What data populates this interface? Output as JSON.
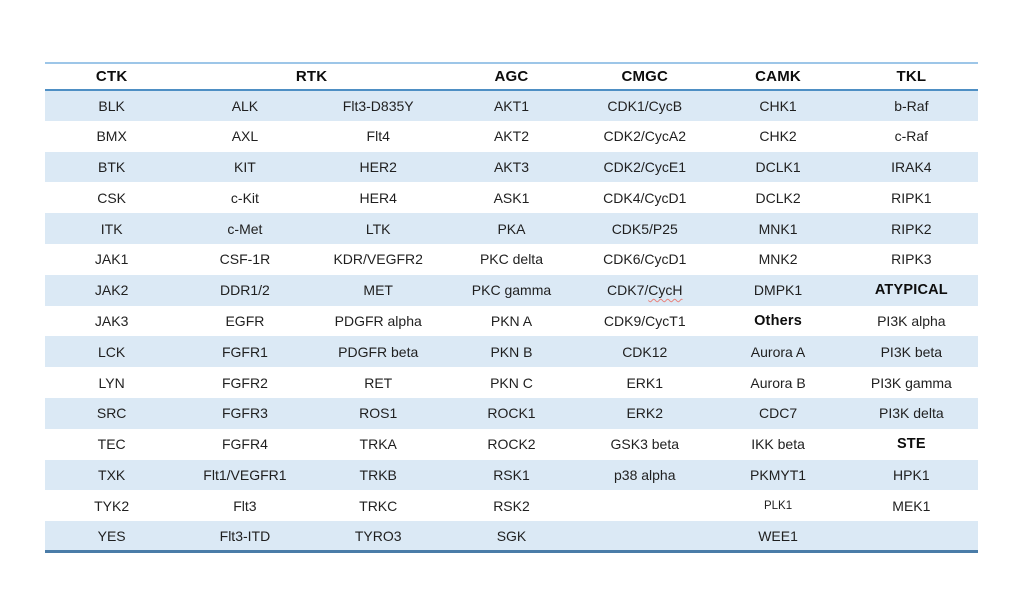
{
  "page": {
    "background": "#ffffff"
  },
  "table": {
    "colors": {
      "stripe": "#dbe9f5",
      "top_rule": "#9dc6e8",
      "header_rule": "#4e8fc4",
      "bottom_rule": "#4a7ca8",
      "text": "#1f1f1f",
      "spellcheck": "#e8827c"
    },
    "header": [
      {
        "label": "CTK",
        "span": 1
      },
      {
        "label": "RTK",
        "span": 2
      },
      {
        "label": "AGC",
        "span": 1
      },
      {
        "label": "CMGC",
        "span": 1
      },
      {
        "label": "CAMK",
        "span": 1
      },
      {
        "label": "TKL",
        "span": 1
      }
    ],
    "rows": [
      [
        "BLK",
        "ALK",
        "Flt3-D835Y",
        "AKT1",
        "CDK1/CycB",
        "CHK1",
        "b-Raf"
      ],
      [
        "BMX",
        "AXL",
        "Flt4",
        "AKT2",
        "CDK2/CycA2",
        "CHK2",
        "c-Raf"
      ],
      [
        "BTK",
        "KIT",
        "HER2",
        "AKT3",
        "CDK2/CycE1",
        "DCLK1",
        "IRAK4"
      ],
      [
        "CSK",
        "c-Kit",
        "HER4",
        "ASK1",
        "CDK4/CycD1",
        "DCLK2",
        "RIPK1"
      ],
      [
        "ITK",
        "c-Met",
        "LTK",
        "PKA",
        "CDK5/P25",
        "MNK1",
        "RIPK2"
      ],
      [
        "JAK1",
        "CSF-1R",
        "KDR/VEGFR2",
        "PKC delta",
        "CDK6/CycD1",
        "MNK2",
        "RIPK3"
      ],
      [
        "JAK2",
        "DDR1/2",
        "MET",
        "PKC gamma",
        {
          "text": "CDK7/CycH",
          "spell_part": "CycH"
        },
        "DMPK1",
        {
          "text": "ATYPICAL",
          "bold": true
        }
      ],
      [
        "JAK3",
        "EGFR",
        "PDGFR alpha",
        "PKN A",
        "CDK9/CycT1",
        {
          "text": "Others",
          "bold": true
        },
        "PI3K alpha"
      ],
      [
        "LCK",
        "FGFR1",
        "PDGFR beta",
        "PKN B",
        "CDK12",
        "Aurora A",
        "PI3K beta"
      ],
      [
        "LYN",
        "FGFR2",
        "RET",
        "PKN C",
        "ERK1",
        "Aurora B",
        "PI3K gamma"
      ],
      [
        "SRC",
        "FGFR3",
        "ROS1",
        "ROCK1",
        "ERK2",
        "CDC7",
        "PI3K delta"
      ],
      [
        "TEC",
        "FGFR4",
        "TRKA",
        "ROCK2",
        "GSK3 beta",
        "IKK beta",
        {
          "text": "STE",
          "bold": true
        }
      ],
      [
        "TXK",
        "Flt1/VEGFR1",
        "TRKB",
        "RSK1",
        "p38 alpha",
        "PKMYT1",
        "HPK1"
      ],
      [
        "TYK2",
        "Flt3",
        "TRKC",
        "RSK2",
        "",
        {
          "text": "PLK1",
          "small": true
        },
        "MEK1"
      ],
      [
        "YES",
        "Flt3-ITD",
        "TYRO3",
        "SGK",
        "",
        "WEE1",
        ""
      ]
    ]
  }
}
